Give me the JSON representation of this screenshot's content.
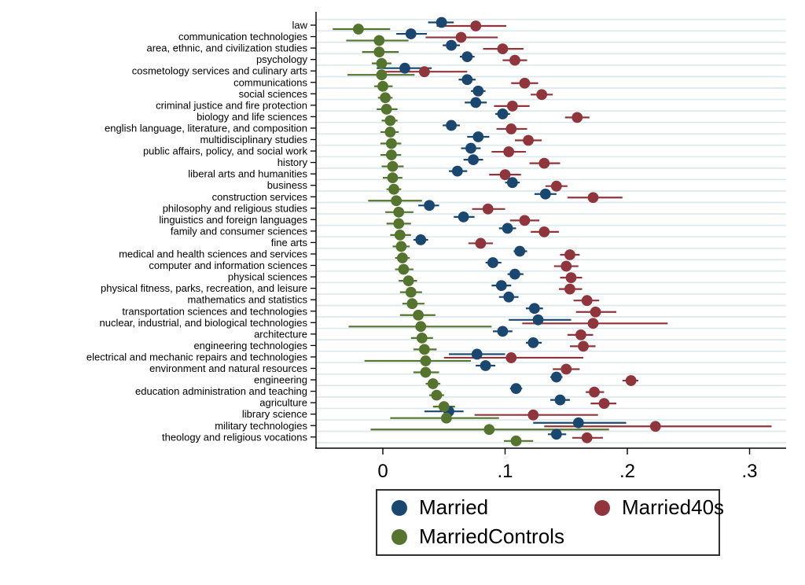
{
  "chart_data": {
    "type": "scatter",
    "subtype": "dot-plot-with-confidence-intervals",
    "orientation": "horizontal",
    "title": "",
    "xlabel": "",
    "ylabel": "",
    "xlim": [
      -0.055,
      0.33
    ],
    "grid": "horizontal-light",
    "x_axis": {
      "tick_values": [
        0,
        0.1,
        0.2,
        0.3
      ],
      "tick_labels": [
        "0",
        ".1",
        ".2",
        ".3"
      ]
    },
    "legend": {
      "position": "bottom-center",
      "entries": [
        "Married",
        "Married40s",
        "MarriedControls"
      ]
    },
    "colors": {
      "married": "#1a476f",
      "married40s": "#90353b",
      "marriedcontrols": "#55752f",
      "gridline": "#dde9ec",
      "axis": "#000000",
      "background": "#ffffff"
    },
    "categories": [
      "law",
      "communication technologies",
      "area, ethnic, and civilization studies",
      "psychology",
      "cosmetology services and culinary arts",
      "communications",
      "social sciences",
      "criminal justice and fire protection",
      "biology and life sciences",
      "english language, literature, and composition",
      "multidisciplinary studies",
      "public affairs, policy, and social work",
      "history",
      "liberal arts and humanities",
      "business",
      "construction services",
      "philosophy and religious studies",
      "linguistics and foreign languages",
      "family and consumer sciences",
      "fine arts",
      "medical and health sciences and services",
      "computer and information sciences",
      "physical sciences",
      "physical fitness, parks, recreation, and leisure",
      "mathematics and statistics",
      "transportation sciences and technologies",
      "nuclear, industrial, and biological technologies",
      "architecture",
      "engineering technologies",
      "electrical and mechanic repairs and technologies",
      "environment and natural resources",
      "engineering",
      "education administration and teaching",
      "agriculture",
      "library science",
      "military technologies",
      "theology and religious vocations"
    ],
    "series": [
      {
        "name": "Married",
        "color": "#1a476f",
        "values": [
          0.048,
          0.023,
          0.056,
          0.069,
          0.018,
          0.069,
          0.078,
          0.076,
          0.098,
          0.056,
          0.078,
          0.072,
          0.074,
          0.061,
          0.106,
          0.133,
          0.038,
          0.066,
          0.102,
          0.031,
          0.112,
          0.09,
          0.108,
          0.097,
          0.103,
          0.124,
          0.127,
          0.098,
          0.123,
          0.077,
          0.084,
          0.142,
          0.109,
          0.145,
          0.054,
          0.16,
          0.142
        ],
        "ci_lo": [
          0.037,
          0.011,
          0.049,
          0.063,
          -0.005,
          0.062,
          0.072,
          0.067,
          0.092,
          0.049,
          0.069,
          0.064,
          0.066,
          0.054,
          0.1,
          0.124,
          0.029,
          0.058,
          0.095,
          0.025,
          0.107,
          0.084,
          0.102,
          0.089,
          0.095,
          0.117,
          0.103,
          0.09,
          0.117,
          0.054,
          0.076,
          0.137,
          0.104,
          0.137,
          0.034,
          0.123,
          0.135
        ],
        "ci_hi": [
          0.058,
          0.036,
          0.063,
          0.075,
          0.04,
          0.076,
          0.084,
          0.085,
          0.104,
          0.063,
          0.087,
          0.08,
          0.082,
          0.069,
          0.112,
          0.142,
          0.046,
          0.075,
          0.109,
          0.037,
          0.118,
          0.097,
          0.115,
          0.105,
          0.111,
          0.131,
          0.154,
          0.106,
          0.13,
          0.1,
          0.092,
          0.147,
          0.114,
          0.153,
          0.066,
          0.199,
          0.15
        ]
      },
      {
        "name": "Married40s",
        "color": "#90353b",
        "values": [
          0.076,
          0.064,
          0.098,
          0.108,
          0.034,
          0.116,
          0.13,
          0.106,
          0.159,
          0.105,
          0.119,
          0.103,
          0.132,
          0.1,
          0.142,
          0.172,
          0.086,
          0.116,
          0.132,
          0.08,
          0.153,
          0.15,
          0.154,
          0.153,
          0.167,
          0.174,
          0.172,
          0.162,
          0.164,
          0.105,
          0.15,
          0.203,
          0.173,
          0.181,
          0.123,
          0.223,
          0.167
        ],
        "ci_lo": [
          0.044,
          0.035,
          0.082,
          0.098,
          -0.001,
          0.105,
          0.121,
          0.091,
          0.149,
          0.093,
          0.108,
          0.089,
          0.12,
          0.087,
          0.133,
          0.151,
          0.073,
          0.104,
          0.121,
          0.07,
          0.145,
          0.14,
          0.145,
          0.144,
          0.156,
          0.158,
          0.114,
          0.151,
          0.153,
          0.05,
          0.139,
          0.196,
          0.166,
          0.17,
          0.075,
          0.132,
          0.155
        ],
        "ci_hi": [
          0.101,
          0.094,
          0.115,
          0.118,
          0.069,
          0.127,
          0.139,
          0.12,
          0.169,
          0.118,
          0.13,
          0.117,
          0.145,
          0.113,
          0.151,
          0.196,
          0.1,
          0.128,
          0.144,
          0.09,
          0.161,
          0.16,
          0.163,
          0.163,
          0.177,
          0.191,
          0.233,
          0.172,
          0.174,
          0.164,
          0.161,
          0.209,
          0.181,
          0.191,
          0.176,
          0.318,
          0.18
        ]
      },
      {
        "name": "MarriedControls",
        "color": "#55752f",
        "values": [
          -0.02,
          -0.003,
          -0.003,
          -0.001,
          -0.001,
          0.0,
          0.002,
          0.003,
          0.006,
          0.006,
          0.007,
          0.007,
          0.008,
          0.008,
          0.009,
          0.011,
          0.013,
          0.013,
          0.014,
          0.015,
          0.016,
          0.017,
          0.021,
          0.023,
          0.024,
          0.029,
          0.031,
          0.032,
          0.034,
          0.035,
          0.035,
          0.041,
          0.044,
          0.05,
          0.052,
          0.087,
          0.109
        ],
        "ci_lo": [
          -0.041,
          -0.03,
          -0.017,
          -0.009,
          -0.029,
          -0.007,
          -0.004,
          -0.005,
          -0.001,
          -0.002,
          -0.002,
          -0.002,
          -0.001,
          0.0,
          0.003,
          -0.012,
          0.002,
          0.003,
          0.006,
          0.008,
          0.01,
          0.01,
          0.013,
          0.014,
          0.016,
          0.014,
          -0.028,
          0.023,
          0.025,
          -0.015,
          0.025,
          0.035,
          0.038,
          0.041,
          0.006,
          -0.01,
          0.099
        ],
        "ci_hi": [
          0.006,
          0.021,
          0.013,
          0.007,
          0.026,
          0.008,
          0.008,
          0.012,
          0.012,
          0.013,
          0.015,
          0.015,
          0.017,
          0.016,
          0.015,
          0.032,
          0.025,
          0.023,
          0.023,
          0.022,
          0.022,
          0.025,
          0.028,
          0.032,
          0.034,
          0.043,
          0.089,
          0.041,
          0.044,
          0.072,
          0.046,
          0.047,
          0.05,
          0.059,
          0.095,
          0.185,
          0.123
        ]
      }
    ]
  }
}
